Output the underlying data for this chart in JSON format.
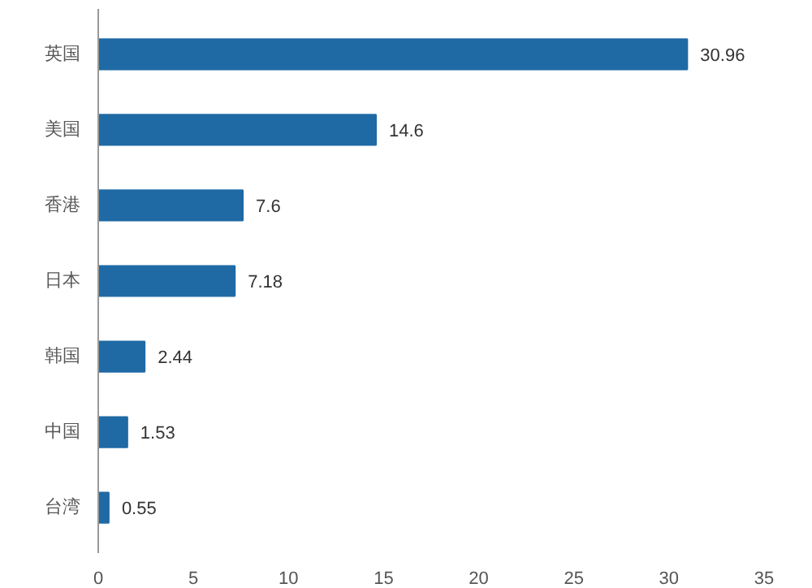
{
  "chart_data": {
    "type": "bar",
    "orientation": "horizontal",
    "categories": [
      "英国",
      "美国",
      "香港",
      "日本",
      "韩国",
      "中国",
      "台湾"
    ],
    "values": [
      30.96,
      14.6,
      7.6,
      7.18,
      2.44,
      1.53,
      0.55
    ],
    "color": "#1f6aa5",
    "data_labels": true,
    "xlim": [
      0,
      35
    ],
    "xticks": [
      0,
      5,
      10,
      15,
      20,
      25,
      30,
      35
    ],
    "grid": false
  }
}
